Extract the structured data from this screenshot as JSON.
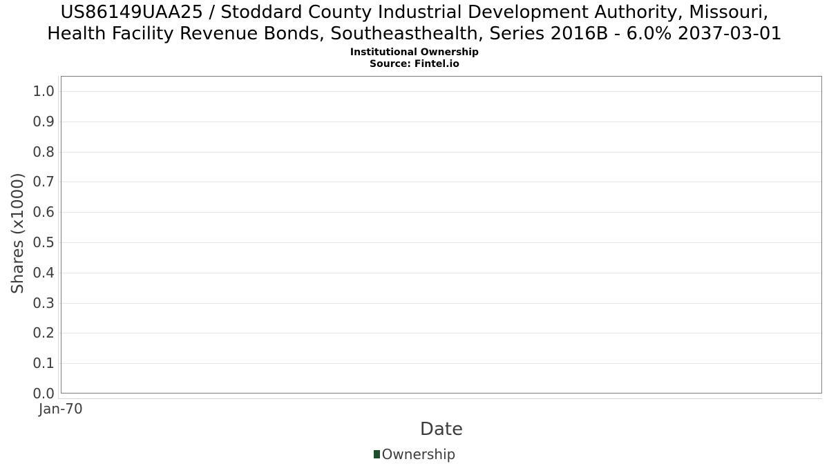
{
  "header": {
    "title": "US86149UAA25 / Stoddard County Industrial Development Authority, Missouri, Health Facility Revenue Bonds, Southeasthealth, Series 2016B - 6.0% 2037-03-01",
    "title_lines": [
      "US86149UAA25 / Stoddard County Industrial Development Authority, Missouri,",
      "Health Facility Revenue Bonds, Southeasthealth, Series 2016B - 6.0% 2037-03-01"
    ],
    "subtitle": "Institutional Ownership",
    "source": "Source: Fintel.io"
  },
  "chart_data": {
    "type": "line",
    "title": "US86149UAA25 / Stoddard County Industrial Development Authority, Missouri, Health Facility Revenue Bonds, Southeasthealth, Series 2016B - 6.0% 2037-03-01",
    "subtitle": "Institutional Ownership",
    "source": "Source: Fintel.io",
    "xlabel": "Date",
    "ylabel": "Shares (x1000)",
    "ylim": [
      0,
      1.05
    ],
    "yticks": [
      0.0,
      0.1,
      0.2,
      0.3,
      0.4,
      0.5,
      0.6,
      0.7,
      0.8,
      0.9,
      1.0
    ],
    "ytick_labels": [
      "0.0",
      "0.1",
      "0.2",
      "0.3",
      "0.4",
      "0.5",
      "0.6",
      "0.7",
      "0.8",
      "0.9",
      "1.0"
    ],
    "xtick_labels": [
      "Jan-70"
    ],
    "grid": true,
    "legend_position": "bottom",
    "series": [
      {
        "name": "Ownership",
        "color": "#1e4d2b",
        "x": [],
        "values": []
      }
    ]
  },
  "colors": {
    "series_green": "#1e4d2b",
    "panel_border": "#7f7f7f",
    "gridline": "#e6e6e6",
    "axis_line": "#d6d6d6",
    "tick_text": "#3c3c3c",
    "title_text": "#000000"
  }
}
